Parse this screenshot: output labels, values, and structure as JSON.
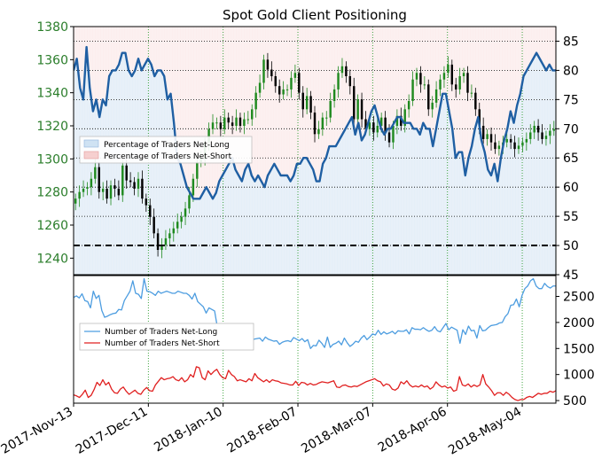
{
  "chart_data": {
    "title": "Spot Gold Client Positioning",
    "type": "line",
    "colors": {
      "price_axis": "#2a7d2a",
      "bull_candle": "#1f8a1f",
      "bear_candle": "#000000",
      "net_long_ratio_line": "#1f5fa3",
      "net_long_fill": "#cfe2f3",
      "net_short_fill": "#f6cfcf",
      "net_long_count_line": "#4d9de0",
      "net_short_count_line": "#e02020"
    },
    "x_axis": {
      "tick_labels": [
        "2017-Nov-13",
        "2017-Dec-11",
        "2018-Jan-10",
        "2018-Feb-07",
        "2018-Mar-07",
        "2018-Apr-06",
        "2018-May-04"
      ],
      "tick_positions": [
        0,
        20,
        40,
        60,
        80,
        100,
        120
      ],
      "range": [
        0,
        129
      ]
    },
    "panels": [
      {
        "id": "price_ratio",
        "left_axis": {
          "range": [
            1230,
            1380
          ],
          "ticks": [
            1240,
            1260,
            1280,
            1300,
            1320,
            1340,
            1360,
            1380
          ]
        },
        "right_axis": {
          "range": [
            45,
            87.5
          ],
          "ticks": [
            45,
            50,
            55,
            60,
            65,
            70,
            75,
            80,
            85
          ]
        },
        "reference_line_right": 50,
        "grid": true,
        "legend": {
          "placement": "middle-left",
          "entries": [
            "Percentage of Traders Net-Long",
            "Percentage of Traders Net-Short"
          ]
        },
        "series": [
          {
            "name": "Percentage of Traders Net-Long",
            "axis": "right",
            "values": [
              80,
              82,
              77,
              75,
              84,
              77,
              73,
              75,
              72,
              75,
              74,
              79,
              80,
              80,
              81,
              83,
              83,
              80,
              79,
              80,
              82,
              80,
              81,
              82,
              81,
              79,
              80,
              80,
              79,
              75,
              76,
              71,
              65,
              64,
              62,
              60,
              59,
              58,
              58,
              58,
              59,
              60,
              59,
              58,
              59,
              61,
              62,
              63,
              64,
              65,
              63,
              62,
              61,
              63,
              64,
              62,
              61,
              62,
              61,
              60,
              62,
              63,
              64,
              63,
              62,
              62,
              62,
              61,
              62,
              64,
              64,
              65,
              65,
              64,
              63,
              61,
              61,
              64,
              65,
              67,
              67,
              67,
              68,
              69,
              70,
              71,
              72,
              69,
              71,
              68,
              69,
              71,
              73,
              74,
              72,
              70,
              69,
              70,
              70,
              71,
              72,
              72,
              71,
              71,
              71,
              70,
              70,
              69,
              71,
              70,
              70,
              67,
              70,
              73,
              76,
              76,
              73,
              70,
              65,
              66,
              66,
              62,
              65,
              67,
              70,
              72,
              68,
              66,
              63,
              62,
              64,
              61,
              65,
              68,
              70,
              73,
              71,
              74,
              76,
              79,
              80,
              81,
              82,
              83,
              82,
              81,
              80,
              81,
              80,
              80
            ]
          },
          {
            "name": "Spot Gold candles",
            "axis": "left",
            "type": "candlestick",
            "close": [
              1276,
              1280,
              1282,
              1283,
              1288,
              1295,
              1280,
              1282,
              1276,
              1284,
              1282,
              1278,
              1296,
              1287,
              1286,
              1282,
              1288,
              1276,
              1272,
              1265,
              1255,
              1245,
              1248,
              1252,
              1255,
              1258,
              1262,
              1265,
              1270,
              1278,
              1288,
              1298,
              1300,
              1310,
              1318,
              1322,
              1322,
              1318,
              1325,
              1322,
              1320,
              1325,
              1320,
              1324,
              1324,
              1330,
              1340,
              1346,
              1360,
              1354,
              1350,
              1344,
              1339,
              1342,
              1342,
              1349,
              1352,
              1340,
              1330,
              1338,
              1328,
              1315,
              1318,
              1325,
              1325,
              1335,
              1342,
              1352,
              1356,
              1350,
              1344,
              1324,
              1336,
              1324,
              1318,
              1322,
              1316,
              1320,
              1325,
              1316,
              1310,
              1320,
              1326,
              1320,
              1330,
              1335,
              1348,
              1352,
              1345,
              1345,
              1330,
              1334,
              1342,
              1348,
              1352,
              1357,
              1345,
              1342,
              1350,
              1352,
              1340,
              1340,
              1330,
              1320,
              1312,
              1315,
              1310,
              1306,
              1308,
              1310,
              1312,
              1310,
              1306,
              1308,
              1310,
              1312,
              1316,
              1320,
              1316,
              1312,
              1314,
              1317,
              1318
            ]
          }
        ]
      },
      {
        "id": "counts",
        "right_axis": {
          "range": [
            450,
            2900
          ],
          "ticks": [
            500,
            1000,
            1500,
            2000,
            2500
          ]
        },
        "legend": {
          "placement": "middle-left",
          "entries": [
            "Number of Traders Net-Long",
            "Number of Traders Net-Short"
          ]
        },
        "series": [
          {
            "name": "Number of Traders Net-Long",
            "values": [
              2480,
              2510,
              2470,
              2550,
              2420,
              2400,
              2280,
              2600,
              2460,
              2520,
              2230,
              2100,
              2120,
              2150,
              2170,
              2180,
              2250,
              2240,
              2420,
              2510,
              2600,
              2800,
              2560,
              2540,
              2460,
              2840,
              2600,
              2590,
              2560,
              2520,
              2600,
              2560,
              2580,
              2600,
              2580,
              2560,
              2560,
              2600,
              2580,
              2560,
              2560,
              2520,
              2450,
              2560,
              2400,
              2350,
              2300,
              2180,
              2280,
              2250,
              2220,
              1900,
              1950,
              1880,
              1780,
              1750,
              1900,
              1900,
              1700,
              1720,
              1690,
              1800,
              1720,
              1640,
              1680,
              1690,
              1700,
              1640,
              1720,
              1680,
              1660,
              1640,
              1650,
              1580,
              1620,
              1640,
              1650,
              1630,
              1710,
              1680,
              1650,
              1690,
              1630,
              1670,
              1500,
              1560,
              1550,
              1660,
              1600,
              1520,
              1720,
              1520,
              1580,
              1600,
              1640,
              1570,
              1700,
              1610,
              1540,
              1580,
              1640,
              1620,
              1700,
              1750,
              1670,
              1720,
              1780,
              1760,
              1850,
              1770,
              1820,
              1780,
              1800,
              1830,
              1780,
              1840,
              1830,
              1830,
              1860,
              1780,
              1900,
              1870,
              1870,
              1860,
              1900,
              1860,
              1830,
              1850,
              1920,
              1840,
              1820,
              1900,
              1980,
              1860,
              1910,
              1880,
              1850,
              1600,
              1860,
              1770,
              1930,
              1840,
              1850,
              1700,
              1940,
              1840,
              1850,
              1900,
              1940,
              1950,
              1960,
              1990,
              2000,
              2110,
              2170,
              2330,
              2340,
              2450,
              2300,
              2520,
              2650,
              2700,
              2800,
              2840,
              2700,
              2650,
              2650,
              2750,
              2690,
              2660,
              2700,
              2700
            ]
          },
          {
            "name": "Number of Traders Net-Short",
            "values": [
              610,
              590,
              560,
              620,
              700,
              560,
              600,
              710,
              850,
              790,
              900,
              800,
              850,
              720,
              650,
              640,
              720,
              760,
              680,
              620,
              660,
              700,
              640,
              620,
              700,
              750,
              690,
              680,
              800,
              870,
              940,
              900,
              920,
              930,
              960,
              900,
              880,
              940,
              860,
              900,
              1000,
              950,
              1150,
              1130,
              940,
              900,
              1070,
              1000,
              1060,
              1100,
              1000,
              940,
              920,
              1080,
              1000,
              960,
              880,
              900,
              880,
              860,
              920,
              880,
              1020,
              940,
              900,
              860,
              900,
              850,
              900,
              880,
              870,
              840,
              830,
              820,
              800,
              800,
              870,
              790,
              850,
              840,
              800,
              830,
              800,
              810,
              840,
              860,
              850,
              840,
              860,
              880,
              760,
              750,
              790,
              800,
              770,
              760,
              780,
              770,
              800,
              830,
              860,
              880,
              900,
              920,
              880,
              860,
              780,
              820,
              800,
              720,
              700,
              740,
              860,
              820,
              880,
              800,
              760,
              780,
              760,
              800,
              760,
              780,
              720,
              760,
              860,
              800,
              760,
              780,
              740,
              760,
              680,
              700,
              960,
              800,
              780,
              820,
              760,
              800,
              770,
              800,
              1000,
              820,
              760,
              690,
              600,
              650,
              650,
              600,
              660,
              620,
              560,
              520,
              500,
              520,
              520,
              560,
              580,
              560,
              600,
              640,
              620,
              640,
              640,
              680,
              660,
              690
            ]
          }
        ]
      }
    ]
  }
}
